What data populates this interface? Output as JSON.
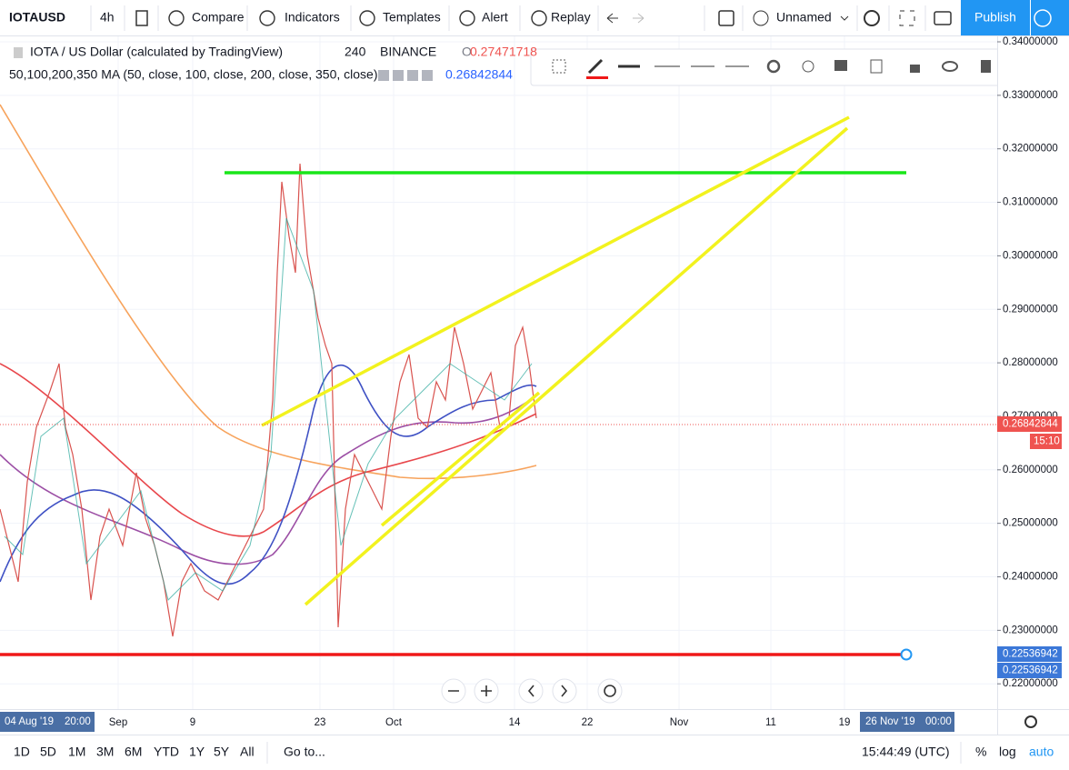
{
  "toolbar": {
    "symbol": "IOTAUSD",
    "interval": "4h",
    "buttons": [
      "Compare",
      "Indicators",
      "Templates",
      "Alert",
      "Replay"
    ],
    "layout_name": "Unnamed",
    "publish": "Publish"
  },
  "legend": {
    "title": "IOTA / US Dollar (calculated by TradingView)",
    "interval": "240",
    "exchange": "BINANCE",
    "ohlc_label": "O",
    "price": "0.27471718",
    "indicator": "50,100,200,350 MA (50, close, 100, close, 200, close, 350, close)",
    "indicator_value": "0.26842844"
  },
  "price_axis": {
    "ticks": [
      "0.34000000",
      "0.33000000",
      "0.32000000",
      "0.31000000",
      "0.30000000",
      "0.29000000",
      "0.28000000",
      "0.27000000",
      "0.26000000",
      "0.25000000",
      "0.24000000",
      "0.23000000",
      "0.22000000"
    ],
    "last_price": "0.26842844",
    "countdown": "15:10",
    "level_labels": [
      "0.22536942",
      "0.22536942"
    ]
  },
  "time_axis": {
    "cursor_start": "04 Aug '19",
    "cursor_start_time": "20:00",
    "ticks": [
      "Sep",
      "9",
      "23",
      "Oct",
      "14",
      "22",
      "Nov",
      "11",
      "19"
    ],
    "cursor_end": "26 Nov '19",
    "cursor_end_time": "00:00"
  },
  "bottom_bar": {
    "ranges": [
      "1D",
      "5D",
      "1M",
      "3M",
      "6M",
      "YTD",
      "1Y",
      "5Y",
      "All"
    ],
    "goto": "Go to...",
    "clock": "15:44:49 (UTC)",
    "toggles": [
      "%",
      "log",
      "auto"
    ]
  }
}
